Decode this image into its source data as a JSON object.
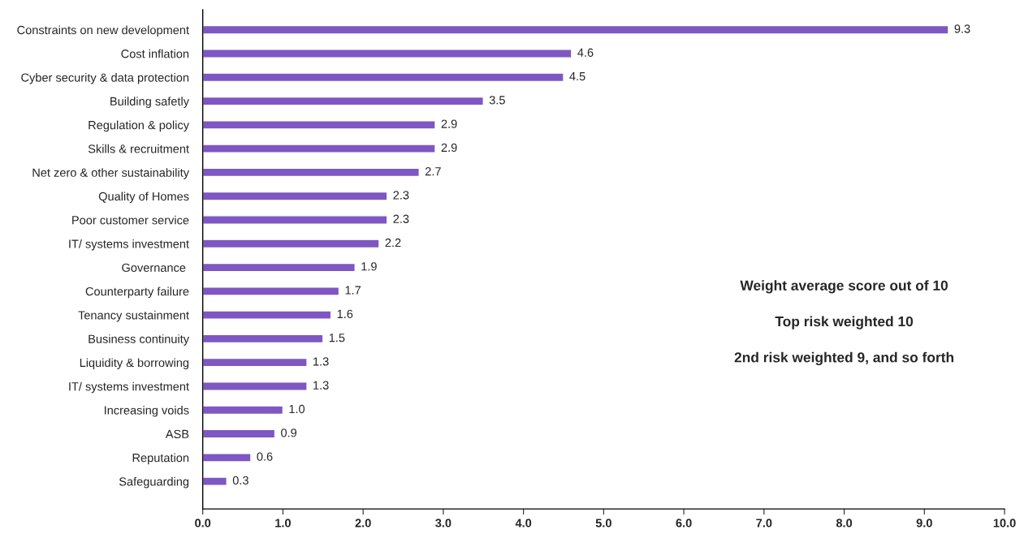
{
  "chart_data": {
    "type": "bar",
    "orientation": "horizontal",
    "categories": [
      "Constraints on new development",
      "Cost inflation",
      "Cyber security & data protection",
      "Building safetly",
      "Regulation & policy",
      "Skills & recruitment",
      "Net zero & other sustainability",
      "Quality of Homes",
      "Poor customer service",
      "IT/ systems investment",
      "Governance ",
      "Counterparty failure",
      "Tenancy sustainment",
      "Business continuity",
      "Liquidity & borrowing",
      "IT/ systems investment",
      "Increasing voids",
      "ASB",
      "Reputation",
      "Safeguarding"
    ],
    "values": [
      9.3,
      4.6,
      4.5,
      3.5,
      2.9,
      2.9,
      2.7,
      2.3,
      2.3,
      2.2,
      1.9,
      1.7,
      1.6,
      1.5,
      1.3,
      1.3,
      1.0,
      0.9,
      0.6,
      0.3
    ],
    "value_labels": [
      "9.3",
      "4.6",
      "4.5",
      "3.5",
      "2.9",
      "2.9",
      "2.7",
      "2.3",
      "2.3",
      "2.2",
      "1.9",
      "1.7",
      "1.6",
      "1.5",
      "1.3",
      "1.3",
      "1.0",
      "0.9",
      "0.6",
      "0.3"
    ],
    "color": "#7e57c2",
    "xlim": [
      0,
      10
    ],
    "xticks": [
      {
        "value": 0,
        "label": "0.0"
      },
      {
        "value": 1,
        "label": "1.0"
      },
      {
        "value": 2,
        "label": "2.0"
      },
      {
        "value": 3,
        "label": "3.0"
      },
      {
        "value": 4,
        "label": "4.0"
      },
      {
        "value": 5,
        "label": "5.0"
      },
      {
        "value": 6,
        "label": "6.0"
      },
      {
        "value": 7,
        "label": "7.0"
      },
      {
        "value": 8,
        "label": "8.0"
      },
      {
        "value": 9,
        "label": "9.0"
      },
      {
        "value": 10,
        "label": "10.0"
      }
    ],
    "annotations": [
      "Weight average score out of 10",
      "Top risk weighted 10",
      "2nd risk weighted 9, and so forth"
    ],
    "grid": false,
    "legend": false
  }
}
